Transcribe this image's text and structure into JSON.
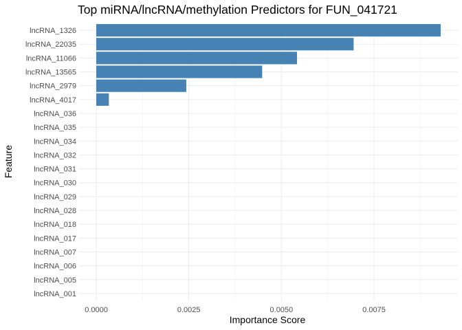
{
  "chart_data": {
    "type": "bar",
    "orientation": "horizontal",
    "title": "Top miRNA/lncRNA/methylation Predictors for FUN_041721",
    "xlabel": "Importance Score",
    "ylabel": "Feature",
    "categories": [
      "lncRNA_1326",
      "lncRNA_22035",
      "lncRNA_11066",
      "lncRNA_13565",
      "lncRNA_2979",
      "lncRNA_4017",
      "lncRNA_036",
      "lncRNA_035",
      "lncRNA_034",
      "lncRNA_032",
      "lncRNA_031",
      "lncRNA_030",
      "lncRNA_029",
      "lncRNA_028",
      "lncRNA_018",
      "lncRNA_017",
      "lncRNA_007",
      "lncRNA_006",
      "lncRNA_005",
      "lncRNA_001"
    ],
    "values": [
      0.0093,
      0.00695,
      0.00542,
      0.00448,
      0.00243,
      0.00034,
      0,
      0,
      0,
      0,
      0,
      0,
      0,
      0,
      0,
      0,
      0,
      0,
      0,
      0
    ],
    "xticks": [
      0.0,
      0.0025,
      0.005,
      0.0075
    ],
    "xtick_labels": [
      "0.0000",
      "0.0025",
      "0.0050",
      "0.0075"
    ],
    "xlim": [
      -0.000465,
      0.009765
    ],
    "bar_color": "#4682B4",
    "grid": true,
    "legend": "none"
  }
}
